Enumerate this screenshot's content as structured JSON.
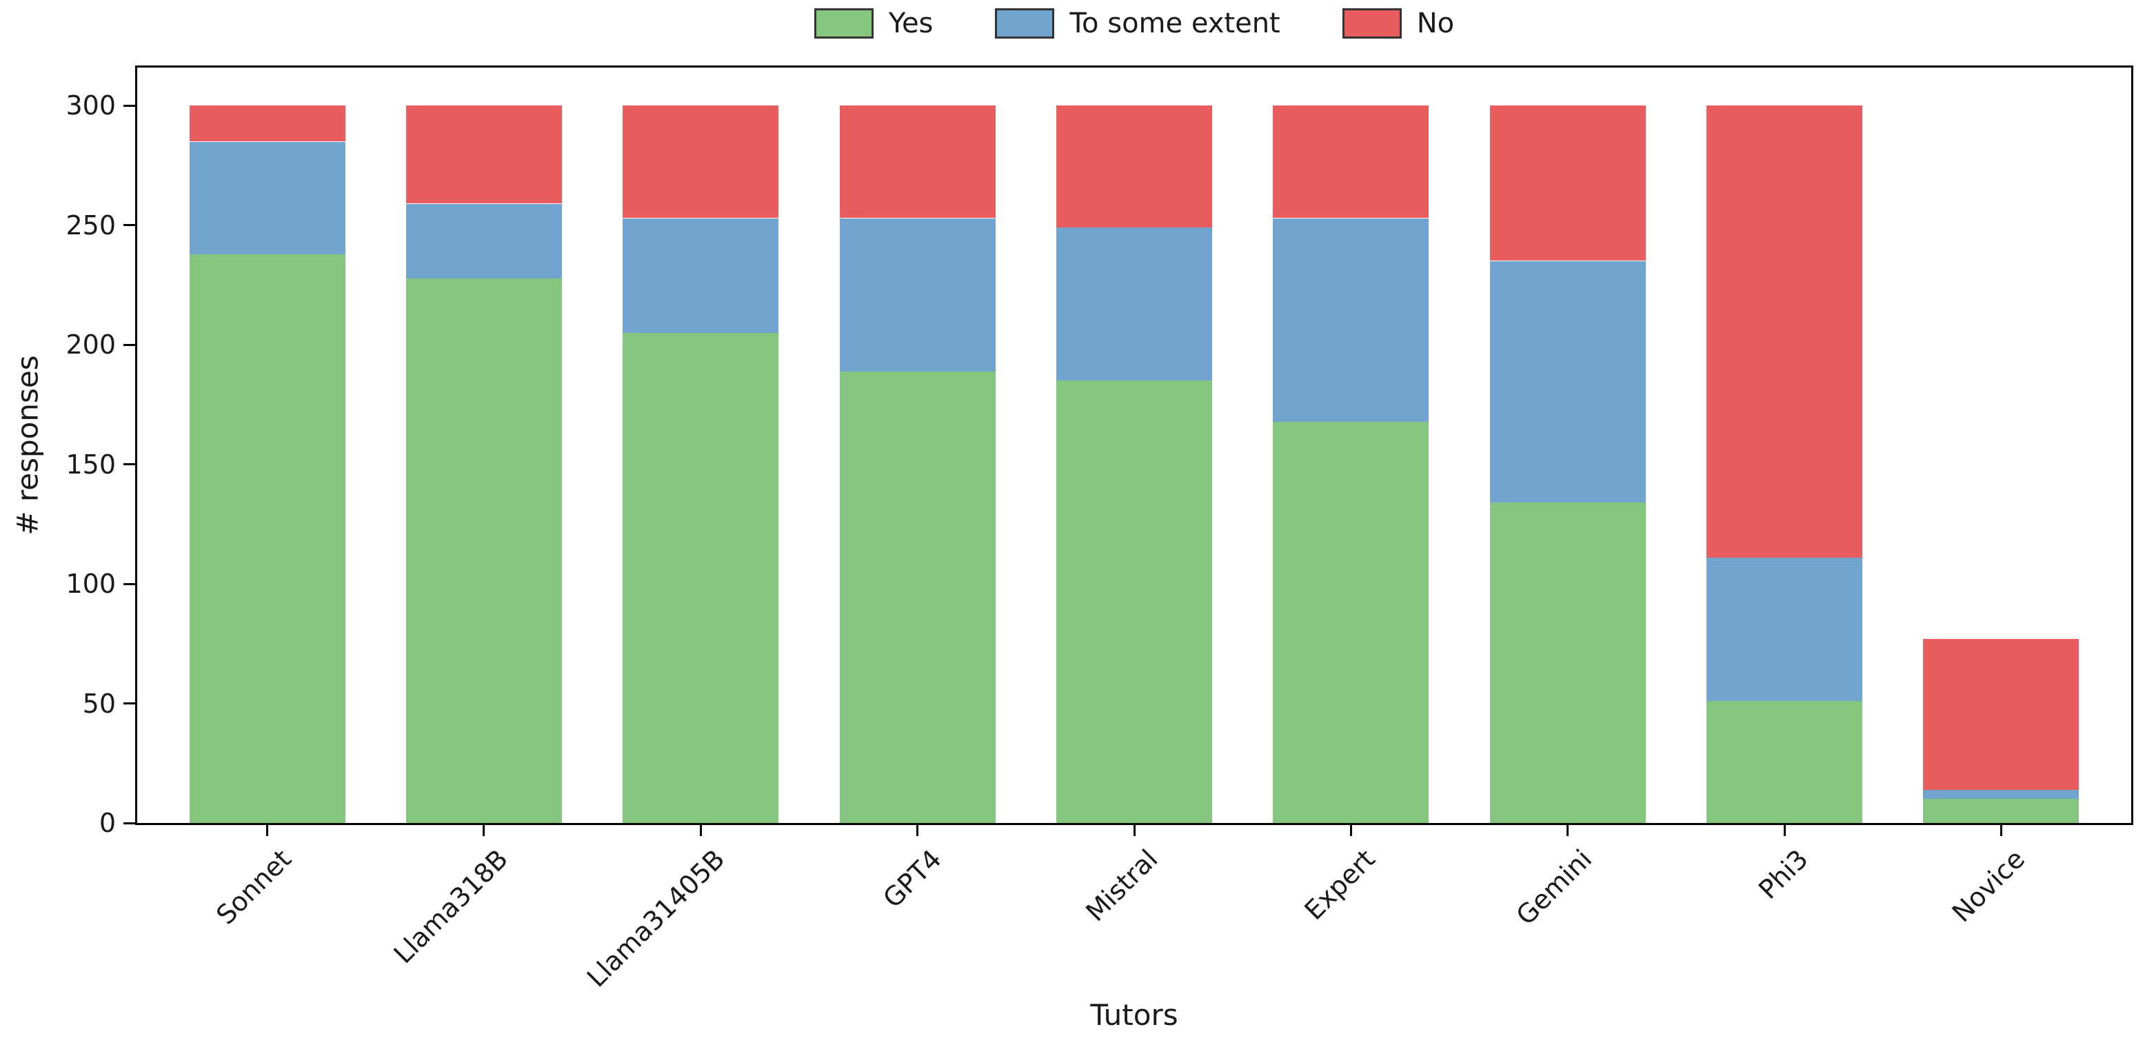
{
  "chart_data": {
    "type": "bar",
    "stacked": true,
    "title": "",
    "xlabel": "Tutors",
    "ylabel": "# responses",
    "categories": [
      "Sonnet",
      "Llama318B",
      "Llama31405B",
      "GPT4",
      "Mistral",
      "Expert",
      "Gemini",
      "Phi3",
      "Novice"
    ],
    "series": [
      {
        "name": "Yes",
        "color": "#85c57f",
        "values": [
          238,
          228,
          205,
          189,
          185,
          168,
          134,
          51,
          10
        ]
      },
      {
        "name": "To some extent",
        "color": "#71a3cf",
        "values": [
          47,
          31,
          48,
          64,
          64,
          85,
          101,
          60,
          4
        ]
      },
      {
        "name": "No",
        "color": "#e95d5f",
        "values": [
          15,
          41,
          47,
          47,
          51,
          47,
          65,
          189,
          63
        ]
      }
    ],
    "totals": [
      300,
      300,
      300,
      300,
      300,
      300,
      300,
      300,
      77
    ],
    "yticks": [
      0,
      50,
      100,
      150,
      200,
      250,
      300
    ],
    "ylim": [
      0,
      316
    ],
    "grid": false,
    "legend": {
      "position": "top-center",
      "entries": [
        "Yes",
        "To some extent",
        "No"
      ]
    },
    "colors": {
      "axis": "#000000",
      "text": "#1a1a1a",
      "swatch_border": "#333333"
    }
  }
}
